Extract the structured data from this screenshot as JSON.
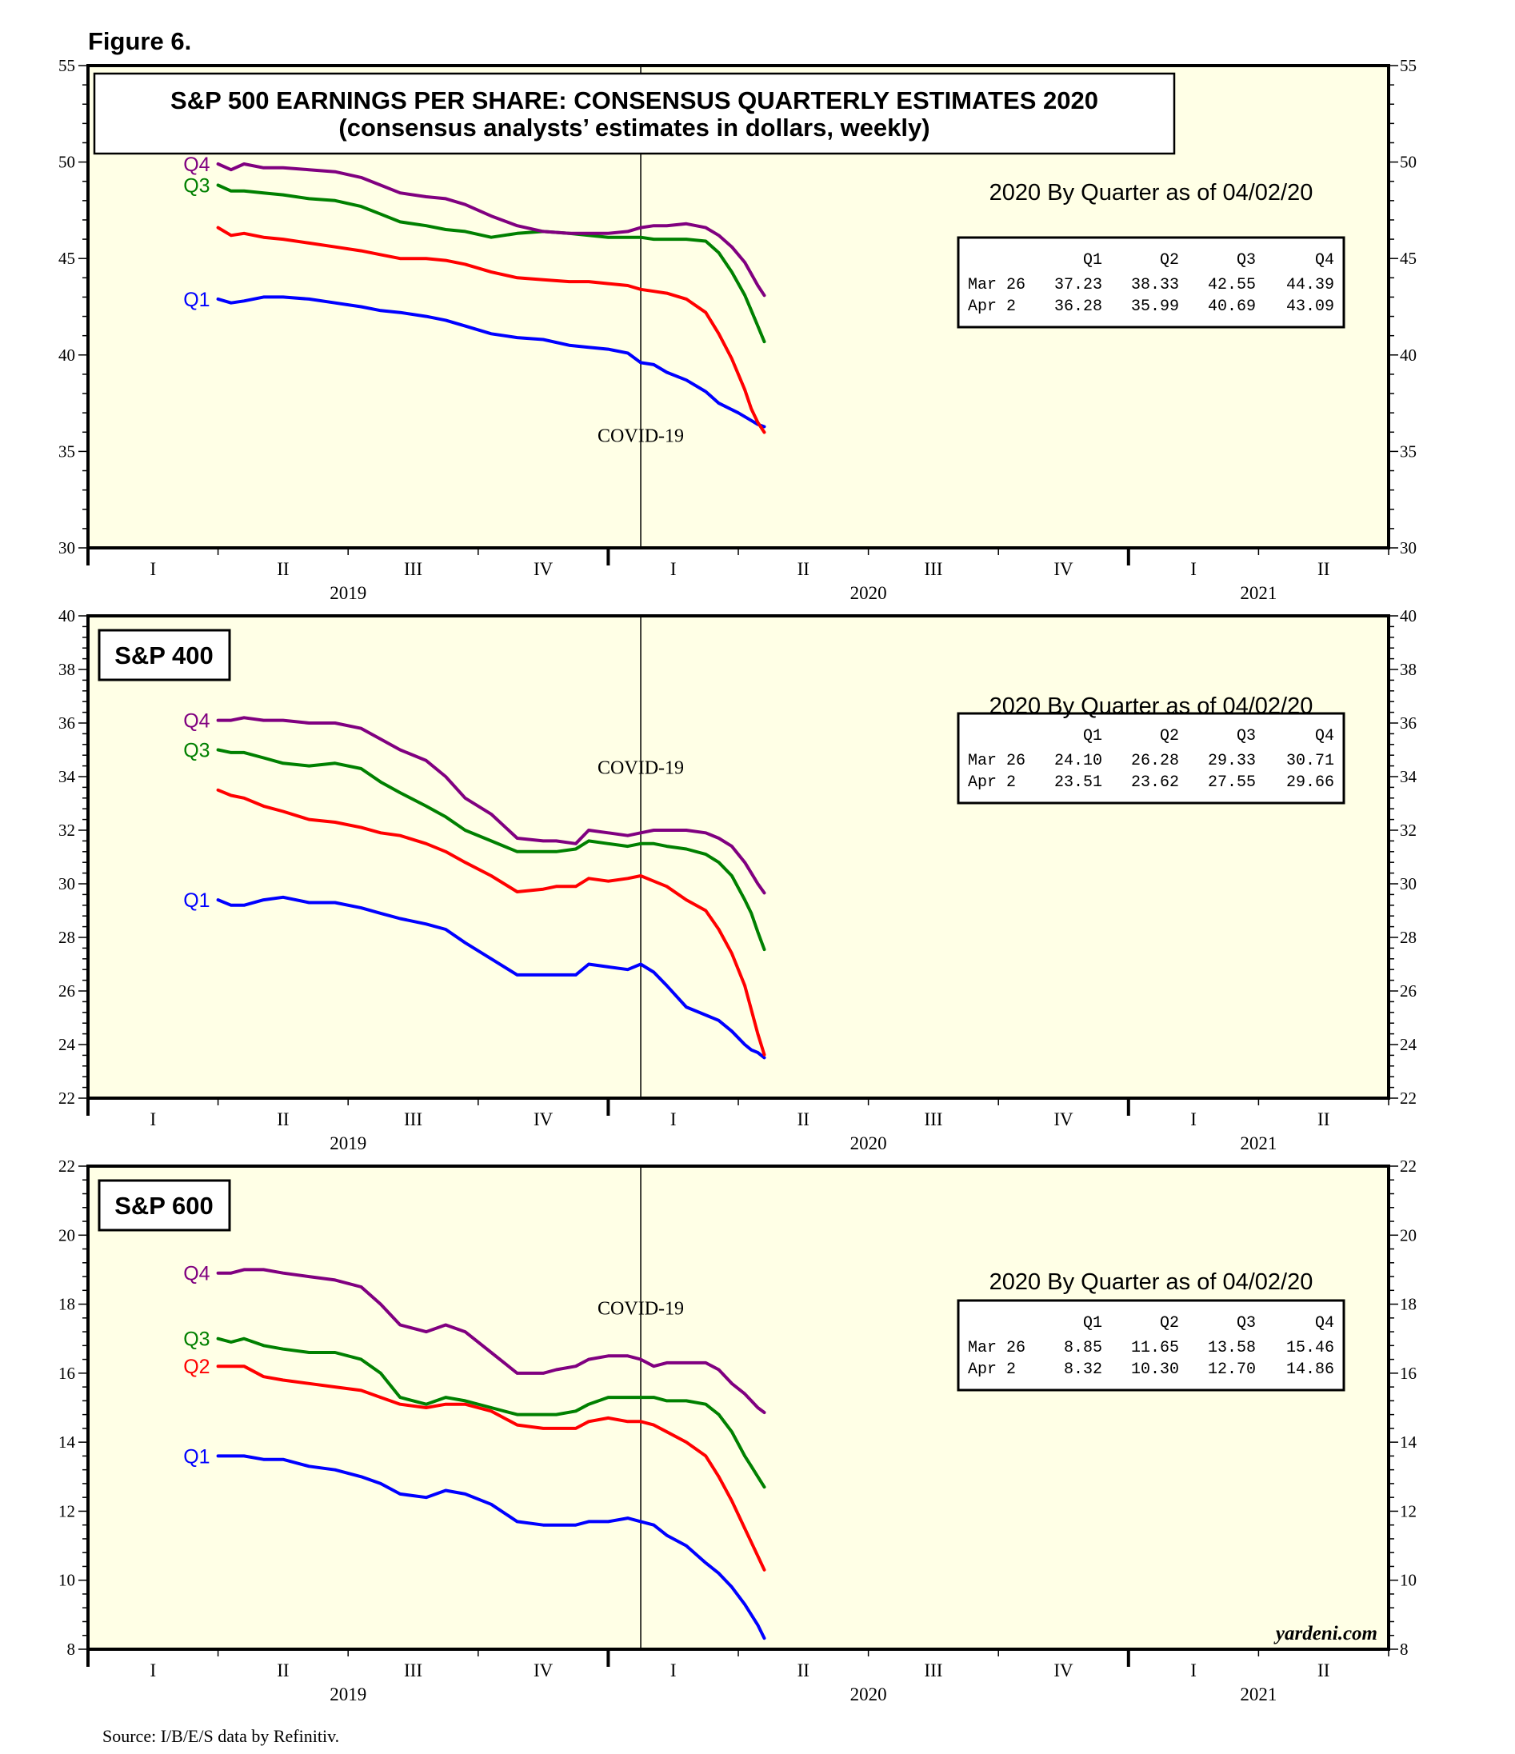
{
  "figure_label": "Figure 6.",
  "source": "Source: I/B/E/S data by Refinitiv.",
  "watermark": "yardeni.com",
  "colors": {
    "Q1": "#0000ff",
    "Q2": "#ff0000",
    "Q3": "#008000",
    "Q4": "#800080",
    "panel_bg": "#ffffe6"
  },
  "x_axis": {
    "quarters": [
      "I",
      "II",
      "III",
      "IV",
      "I",
      "II",
      "III",
      "IV",
      "I",
      "II"
    ],
    "years": [
      "2019",
      "2020",
      "2021"
    ]
  },
  "chart_data": [
    {
      "type": "line",
      "title": "S&P 500 EARNINGS PER SHARE: CONSENSUS QUARTERLY ESTIMATES 2020",
      "subtitle": "(consensus analysts’ estimates in dollars, weekly)",
      "ylim": [
        30,
        55
      ],
      "yticks": [
        30,
        35,
        40,
        45,
        50,
        55
      ],
      "xlim": [
        0,
        10
      ],
      "annotation": "COVID-19",
      "annotation_x": 4.25,
      "series": [
        {
          "name": "Q1",
          "label": "Q1",
          "x": [
            1.0,
            1.1,
            1.2,
            1.35,
            1.5,
            1.7,
            1.9,
            2.1,
            2.25,
            2.4,
            2.6,
            2.75,
            2.9,
            3.1,
            3.3,
            3.5,
            3.7,
            3.85,
            4.0,
            4.15,
            4.25,
            4.35,
            4.45,
            4.6,
            4.75,
            4.85,
            5.0,
            5.1,
            5.15,
            5.2
          ],
          "values": [
            42.9,
            42.7,
            42.8,
            43.0,
            43.0,
            42.9,
            42.7,
            42.5,
            42.3,
            42.2,
            42.0,
            41.8,
            41.5,
            41.1,
            40.9,
            40.8,
            40.5,
            40.4,
            40.3,
            40.1,
            39.6,
            39.5,
            39.1,
            38.7,
            38.1,
            37.5,
            37.0,
            36.6,
            36.4,
            36.28
          ]
        },
        {
          "name": "Q2",
          "label": "",
          "x": [
            1.0,
            1.1,
            1.2,
            1.35,
            1.5,
            1.7,
            1.9,
            2.1,
            2.25,
            2.4,
            2.6,
            2.75,
            2.9,
            3.1,
            3.3,
            3.5,
            3.7,
            3.85,
            4.0,
            4.15,
            4.25,
            4.35,
            4.45,
            4.6,
            4.75,
            4.85,
            4.95,
            5.05,
            5.1,
            5.15,
            5.2
          ],
          "values": [
            46.6,
            46.2,
            46.3,
            46.1,
            46.0,
            45.8,
            45.6,
            45.4,
            45.2,
            45.0,
            45.0,
            44.9,
            44.7,
            44.3,
            44.0,
            43.9,
            43.8,
            43.8,
            43.7,
            43.6,
            43.4,
            43.3,
            43.2,
            42.9,
            42.2,
            41.1,
            39.8,
            38.2,
            37.2,
            36.5,
            35.99
          ]
        },
        {
          "name": "Q3",
          "label": "Q3",
          "x": [
            1.0,
            1.1,
            1.2,
            1.35,
            1.5,
            1.7,
            1.9,
            2.1,
            2.25,
            2.4,
            2.6,
            2.75,
            2.9,
            3.1,
            3.3,
            3.5,
            3.7,
            3.85,
            4.0,
            4.15,
            4.25,
            4.35,
            4.45,
            4.6,
            4.75,
            4.85,
            4.95,
            5.05,
            5.1,
            5.15,
            5.2
          ],
          "values": [
            48.8,
            48.5,
            48.5,
            48.4,
            48.3,
            48.1,
            48.0,
            47.7,
            47.3,
            46.9,
            46.7,
            46.5,
            46.4,
            46.1,
            46.3,
            46.4,
            46.3,
            46.2,
            46.1,
            46.1,
            46.1,
            46.0,
            46.0,
            46.0,
            45.9,
            45.3,
            44.3,
            43.1,
            42.3,
            41.5,
            40.69
          ]
        },
        {
          "name": "Q4",
          "label": "Q4",
          "x": [
            1.0,
            1.1,
            1.2,
            1.35,
            1.5,
            1.7,
            1.9,
            2.1,
            2.25,
            2.4,
            2.6,
            2.75,
            2.9,
            3.1,
            3.3,
            3.5,
            3.7,
            3.85,
            4.0,
            4.15,
            4.25,
            4.35,
            4.45,
            4.6,
            4.75,
            4.85,
            4.95,
            5.05,
            5.1,
            5.15,
            5.2
          ],
          "values": [
            49.9,
            49.6,
            49.9,
            49.7,
            49.7,
            49.6,
            49.5,
            49.2,
            48.8,
            48.4,
            48.2,
            48.1,
            47.8,
            47.2,
            46.7,
            46.4,
            46.3,
            46.3,
            46.3,
            46.4,
            46.6,
            46.7,
            46.7,
            46.8,
            46.6,
            46.2,
            45.6,
            44.8,
            44.2,
            43.6,
            43.09
          ]
        }
      ],
      "table": {
        "title": "2020 By Quarter as of 04/02/20",
        "headers": [
          "",
          "Q1",
          "Q2",
          "Q3",
          "Q4"
        ],
        "rows": [
          [
            "Mar 26",
            "37.23",
            "38.33",
            "42.55",
            "44.39"
          ],
          [
            "Apr  2",
            "36.28",
            "35.99",
            "40.69",
            "43.09"
          ]
        ]
      }
    },
    {
      "type": "line",
      "title": "S&P 400",
      "ylim": [
        22,
        40
      ],
      "yticks": [
        22,
        24,
        26,
        28,
        30,
        32,
        34,
        36,
        38,
        40
      ],
      "xlim": [
        0,
        10
      ],
      "annotation": "COVID-19",
      "annotation_x": 4.25,
      "series": [
        {
          "name": "Q1",
          "label": "Q1",
          "x": [
            1.0,
            1.1,
            1.2,
            1.35,
            1.5,
            1.7,
            1.9,
            2.1,
            2.25,
            2.4,
            2.6,
            2.75,
            2.9,
            3.1,
            3.3,
            3.5,
            3.6,
            3.75,
            3.85,
            4.0,
            4.15,
            4.25,
            4.35,
            4.45,
            4.6,
            4.75,
            4.85,
            4.95,
            5.05,
            5.1,
            5.15,
            5.2
          ],
          "values": [
            29.4,
            29.2,
            29.2,
            29.4,
            29.5,
            29.3,
            29.3,
            29.1,
            28.9,
            28.7,
            28.5,
            28.3,
            27.8,
            27.2,
            26.6,
            26.6,
            26.6,
            26.6,
            27.0,
            26.9,
            26.8,
            27.0,
            26.7,
            26.2,
            25.4,
            25.1,
            24.9,
            24.5,
            24.0,
            23.8,
            23.7,
            23.51
          ]
        },
        {
          "name": "Q2",
          "label": "",
          "x": [
            1.0,
            1.1,
            1.2,
            1.35,
            1.5,
            1.7,
            1.9,
            2.1,
            2.25,
            2.4,
            2.6,
            2.75,
            2.9,
            3.1,
            3.3,
            3.5,
            3.6,
            3.75,
            3.85,
            4.0,
            4.15,
            4.25,
            4.35,
            4.45,
            4.6,
            4.75,
            4.85,
            4.95,
            5.05,
            5.1,
            5.15,
            5.2
          ],
          "values": [
            33.5,
            33.3,
            33.2,
            32.9,
            32.7,
            32.4,
            32.3,
            32.1,
            31.9,
            31.8,
            31.5,
            31.2,
            30.8,
            30.3,
            29.7,
            29.8,
            29.9,
            29.9,
            30.2,
            30.1,
            30.2,
            30.3,
            30.1,
            29.9,
            29.4,
            29.0,
            28.3,
            27.4,
            26.2,
            25.3,
            24.4,
            23.62
          ]
        },
        {
          "name": "Q3",
          "label": "Q3",
          "x": [
            1.0,
            1.1,
            1.2,
            1.35,
            1.5,
            1.7,
            1.9,
            2.1,
            2.25,
            2.4,
            2.6,
            2.75,
            2.9,
            3.1,
            3.3,
            3.5,
            3.6,
            3.75,
            3.85,
            4.0,
            4.15,
            4.25,
            4.35,
            4.45,
            4.6,
            4.75,
            4.85,
            4.95,
            5.05,
            5.1,
            5.15,
            5.2
          ],
          "values": [
            35.0,
            34.9,
            34.9,
            34.7,
            34.5,
            34.4,
            34.5,
            34.3,
            33.8,
            33.4,
            32.9,
            32.5,
            32.0,
            31.6,
            31.2,
            31.2,
            31.2,
            31.3,
            31.6,
            31.5,
            31.4,
            31.5,
            31.5,
            31.4,
            31.3,
            31.1,
            30.8,
            30.3,
            29.4,
            28.9,
            28.2,
            27.55
          ]
        },
        {
          "name": "Q4",
          "label": "Q4",
          "x": [
            1.0,
            1.1,
            1.2,
            1.35,
            1.5,
            1.7,
            1.9,
            2.1,
            2.25,
            2.4,
            2.6,
            2.75,
            2.9,
            3.1,
            3.3,
            3.5,
            3.6,
            3.75,
            3.85,
            4.0,
            4.15,
            4.25,
            4.35,
            4.45,
            4.6,
            4.75,
            4.85,
            4.95,
            5.05,
            5.1,
            5.15,
            5.2
          ],
          "values": [
            36.1,
            36.1,
            36.2,
            36.1,
            36.1,
            36.0,
            36.0,
            35.8,
            35.4,
            35.0,
            34.6,
            34.0,
            33.2,
            32.6,
            31.7,
            31.6,
            31.6,
            31.5,
            32.0,
            31.9,
            31.8,
            31.9,
            32.0,
            32.0,
            32.0,
            31.9,
            31.7,
            31.4,
            30.8,
            30.4,
            30.0,
            29.66
          ]
        }
      ],
      "table": {
        "title": "2020 By Quarter as of 04/02/20",
        "headers": [
          "",
          "Q1",
          "Q2",
          "Q3",
          "Q4"
        ],
        "rows": [
          [
            "Mar 26",
            "24.10",
            "26.28",
            "29.33",
            "30.71"
          ],
          [
            "Apr  2",
            "23.51",
            "23.62",
            "27.55",
            "29.66"
          ]
        ]
      }
    },
    {
      "type": "line",
      "title": "S&P 600",
      "ylim": [
        8,
        22
      ],
      "yticks": [
        8,
        10,
        12,
        14,
        16,
        18,
        20,
        22
      ],
      "xlim": [
        0,
        10
      ],
      "annotation": "COVID-19",
      "annotation_x": 4.25,
      "series": [
        {
          "name": "Q1",
          "label": "Q1",
          "x": [
            1.0,
            1.1,
            1.2,
            1.35,
            1.5,
            1.7,
            1.9,
            2.1,
            2.25,
            2.4,
            2.6,
            2.75,
            2.9,
            3.1,
            3.3,
            3.5,
            3.6,
            3.75,
            3.85,
            4.0,
            4.15,
            4.25,
            4.35,
            4.45,
            4.6,
            4.75,
            4.85,
            4.95,
            5.05,
            5.1,
            5.15,
            5.2
          ],
          "values": [
            13.6,
            13.6,
            13.6,
            13.5,
            13.5,
            13.3,
            13.2,
            13.0,
            12.8,
            12.5,
            12.4,
            12.6,
            12.5,
            12.2,
            11.7,
            11.6,
            11.6,
            11.6,
            11.7,
            11.7,
            11.8,
            11.7,
            11.6,
            11.3,
            11.0,
            10.5,
            10.2,
            9.8,
            9.3,
            9.0,
            8.7,
            8.32
          ]
        },
        {
          "name": "Q2",
          "label": "Q2",
          "x": [
            1.0,
            1.1,
            1.2,
            1.35,
            1.5,
            1.7,
            1.9,
            2.1,
            2.25,
            2.4,
            2.6,
            2.75,
            2.9,
            3.1,
            3.3,
            3.5,
            3.6,
            3.75,
            3.85,
            4.0,
            4.15,
            4.25,
            4.35,
            4.45,
            4.6,
            4.75,
            4.85,
            4.95,
            5.05,
            5.1,
            5.15,
            5.2
          ],
          "values": [
            16.2,
            16.2,
            16.2,
            15.9,
            15.8,
            15.7,
            15.6,
            15.5,
            15.3,
            15.1,
            15.0,
            15.1,
            15.1,
            14.9,
            14.5,
            14.4,
            14.4,
            14.4,
            14.6,
            14.7,
            14.6,
            14.6,
            14.5,
            14.3,
            14.0,
            13.6,
            13.0,
            12.3,
            11.5,
            11.1,
            10.7,
            10.3
          ]
        },
        {
          "name": "Q3",
          "label": "Q3",
          "x": [
            1.0,
            1.1,
            1.2,
            1.35,
            1.5,
            1.7,
            1.9,
            2.1,
            2.25,
            2.4,
            2.6,
            2.75,
            2.9,
            3.1,
            3.3,
            3.5,
            3.6,
            3.75,
            3.85,
            4.0,
            4.15,
            4.25,
            4.35,
            4.45,
            4.6,
            4.75,
            4.85,
            4.95,
            5.05,
            5.1,
            5.15,
            5.2
          ],
          "values": [
            17.0,
            16.9,
            17.0,
            16.8,
            16.7,
            16.6,
            16.6,
            16.4,
            16.0,
            15.3,
            15.1,
            15.3,
            15.2,
            15.0,
            14.8,
            14.8,
            14.8,
            14.9,
            15.1,
            15.3,
            15.3,
            15.3,
            15.3,
            15.2,
            15.2,
            15.1,
            14.8,
            14.3,
            13.6,
            13.3,
            13.0,
            12.7
          ]
        },
        {
          "name": "Q4",
          "label": "Q4",
          "x": [
            1.0,
            1.1,
            1.2,
            1.35,
            1.5,
            1.7,
            1.9,
            2.1,
            2.25,
            2.4,
            2.6,
            2.75,
            2.9,
            3.1,
            3.3,
            3.5,
            3.6,
            3.75,
            3.85,
            4.0,
            4.15,
            4.25,
            4.35,
            4.45,
            4.6,
            4.75,
            4.85,
            4.95,
            5.05,
            5.1,
            5.15,
            5.2
          ],
          "values": [
            18.9,
            18.9,
            19.0,
            19.0,
            18.9,
            18.8,
            18.7,
            18.5,
            18.0,
            17.4,
            17.2,
            17.4,
            17.2,
            16.6,
            16.0,
            16.0,
            16.1,
            16.2,
            16.4,
            16.5,
            16.5,
            16.4,
            16.2,
            16.3,
            16.3,
            16.3,
            16.1,
            15.7,
            15.4,
            15.2,
            15.0,
            14.86
          ]
        }
      ],
      "table": {
        "title": "2020 By Quarter as of 04/02/20",
        "headers": [
          "",
          "Q1",
          "Q2",
          "Q3",
          "Q4"
        ],
        "rows": [
          [
            "Mar 26",
            "8.85",
            "11.65",
            "13.58",
            "15.46"
          ],
          [
            "Apr  2",
            "8.32",
            "10.30",
            "12.70",
            "14.86"
          ]
        ]
      }
    }
  ]
}
